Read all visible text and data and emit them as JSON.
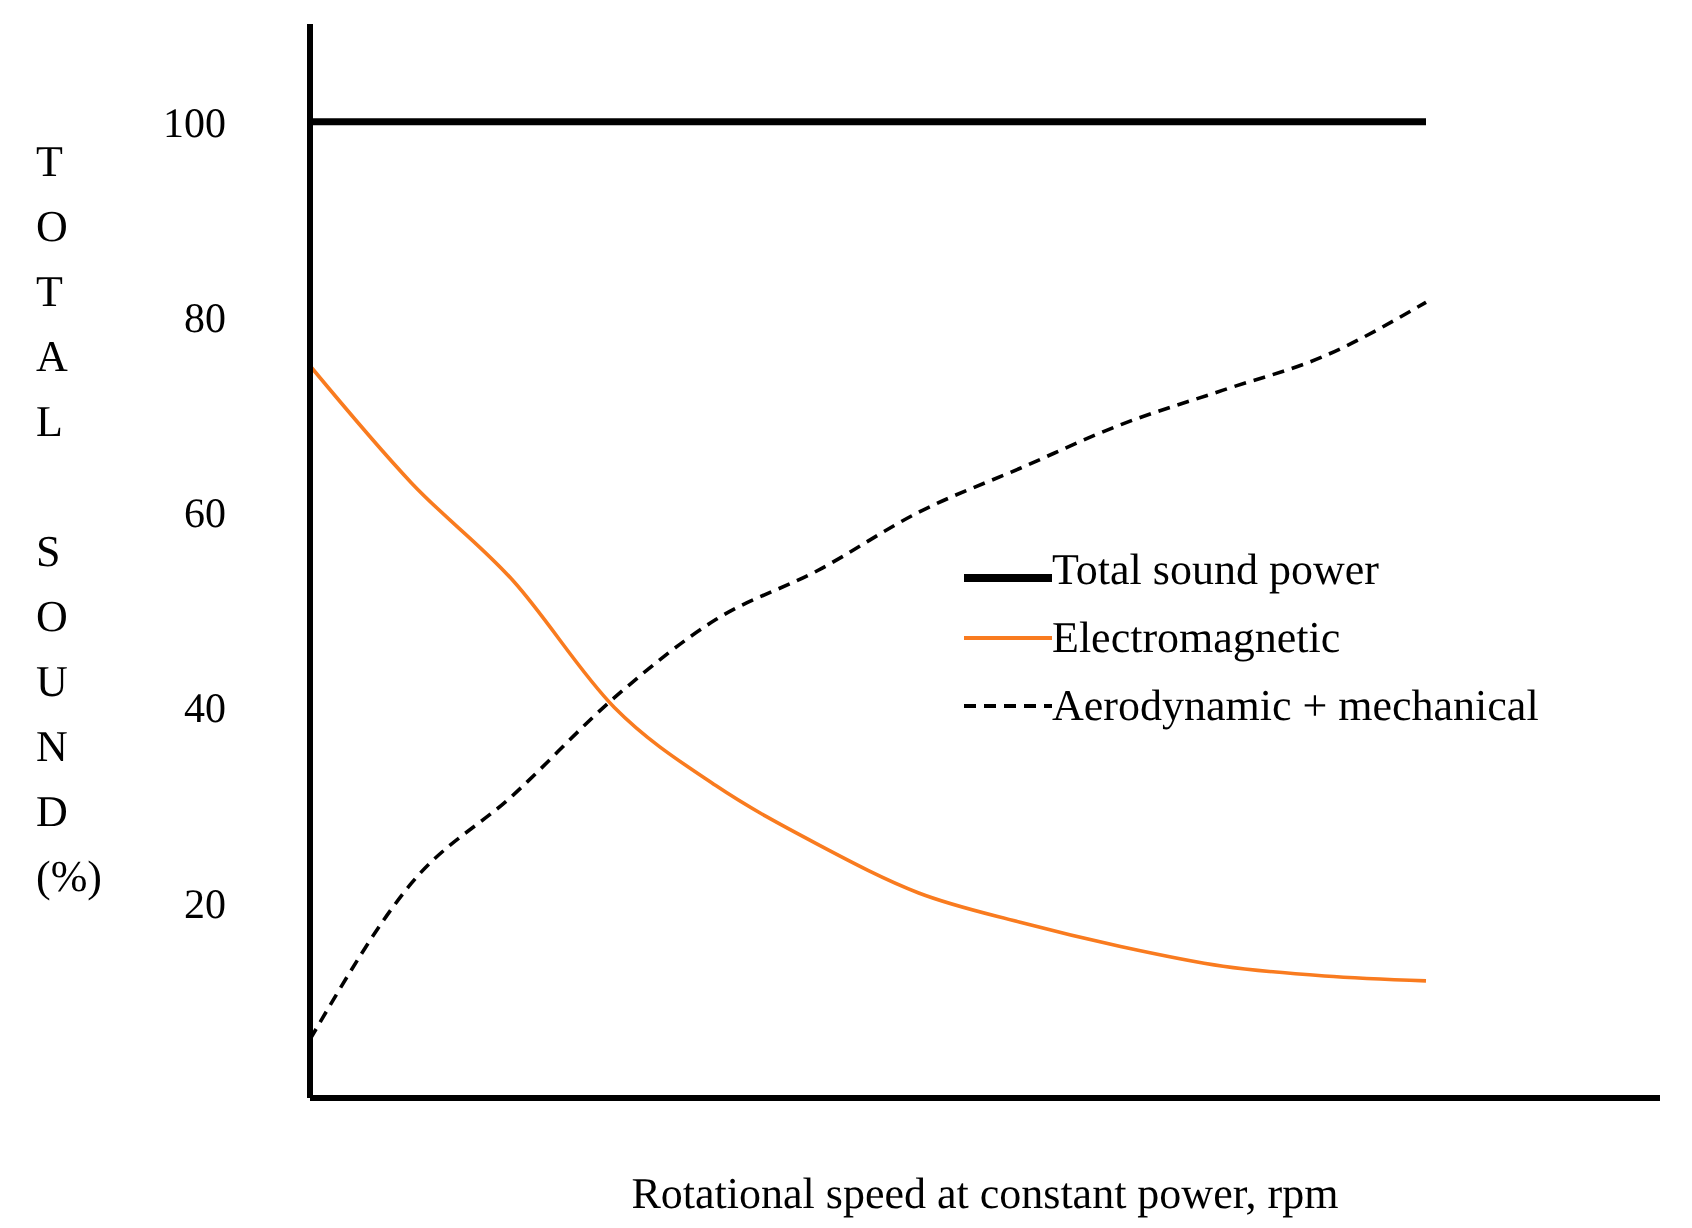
{
  "chart_data": {
    "type": "line",
    "ylabel": "TOTAL SOUND (%)",
    "xlabel": "Rotational speed at constant power, rpm",
    "categories": [
      null,
      null,
      null,
      null,
      null,
      null,
      null,
      null,
      null,
      null,
      null,
      null
    ],
    "series": [
      {
        "name": "Total sound power",
        "color": "#000000",
        "values": [
          100,
          100,
          100,
          100,
          100,
          100,
          100,
          100,
          100,
          100,
          100,
          100
        ],
        "line_style": "solid"
      },
      {
        "name": "Electromagnetic",
        "color": "#f97b1f",
        "values": [
          75,
          63,
          53,
          40,
          32,
          26,
          21,
          18,
          15.5,
          13.5,
          12.5,
          12
        ],
        "line_style": "solid"
      },
      {
        "name": "Aerodynamic + mechanical",
        "color": "#000000",
        "values": [
          6,
          22,
          31,
          41,
          49,
          54,
          60,
          64.5,
          69,
          72.5,
          76,
          81.5
        ],
        "line_style": "dashed"
      }
    ],
    "ylim": [
      0,
      110
    ],
    "yticks": [
      20,
      40,
      60,
      80,
      100
    ],
    "tick_labels": "y",
    "legend": "right",
    "marker": "none"
  }
}
